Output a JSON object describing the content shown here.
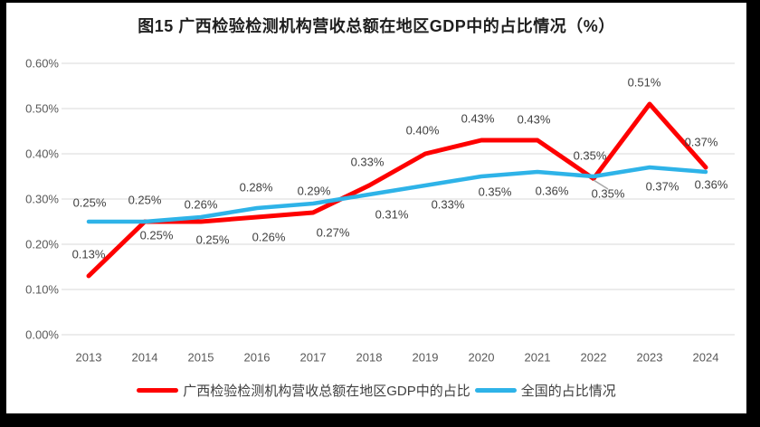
{
  "title": "图15 广西检验检测机构营收总额在地区GDP中的占比情况（%）",
  "colors": {
    "guangxi_line": "#fe0000",
    "national_line": "#2eb3e8",
    "gridline": "#d9d9d9",
    "axis_text": "#595959",
    "label_text": "#404040",
    "leader_line": "#a6a6a6",
    "background": "#ffffff",
    "frame": "#000000"
  },
  "chart_data": {
    "type": "line",
    "title": "图15 广西检验检测机构营收总额在地区GDP中的占比情况（%）",
    "categories": [
      "2013",
      "2014",
      "2015",
      "2016",
      "2017",
      "2018",
      "2019",
      "2020",
      "2021",
      "2022",
      "2023",
      "2024"
    ],
    "y_ticks": [
      "0.60%",
      "0.50%",
      "0.40%",
      "0.30%",
      "0.20%",
      "0.10%",
      "0.00%"
    ],
    "ylim": [
      0,
      0.6
    ],
    "ylabel": "",
    "xlabel": "",
    "grid": true,
    "legend_position": "bottom",
    "series": [
      {
        "name": "广西检验检测机构营收总额在地区GDP中的占比",
        "color": "#fe0000",
        "values": [
          0.13,
          0.25,
          0.25,
          0.26,
          0.27,
          0.33,
          0.4,
          0.43,
          0.43,
          0.35,
          0.51,
          0.37
        ],
        "labels": [
          "0.13%",
          "0.25%",
          "0.25%",
          "0.26%",
          "0.27%",
          "0.33%",
          "0.40%",
          "0.43%",
          "0.43%",
          "0.35%",
          "0.51%",
          "0.37%"
        ]
      },
      {
        "name": "全国的占比情况",
        "color": "#2eb3e8",
        "values": [
          0.25,
          0.25,
          0.26,
          0.28,
          0.29,
          0.31,
          0.33,
          0.35,
          0.36,
          0.35,
          0.37,
          0.36
        ],
        "labels": [
          "0.25%",
          "0.25%",
          "0.26%",
          "0.28%",
          "0.29%",
          "0.31%",
          "0.33%",
          "0.35%",
          "0.36%",
          "0.35%",
          "0.37%",
          "0.36%"
        ]
      }
    ],
    "callout": {
      "series": "全国的占比情况",
      "category": "2022",
      "label": "0.35%",
      "has_leader_line": true
    }
  }
}
